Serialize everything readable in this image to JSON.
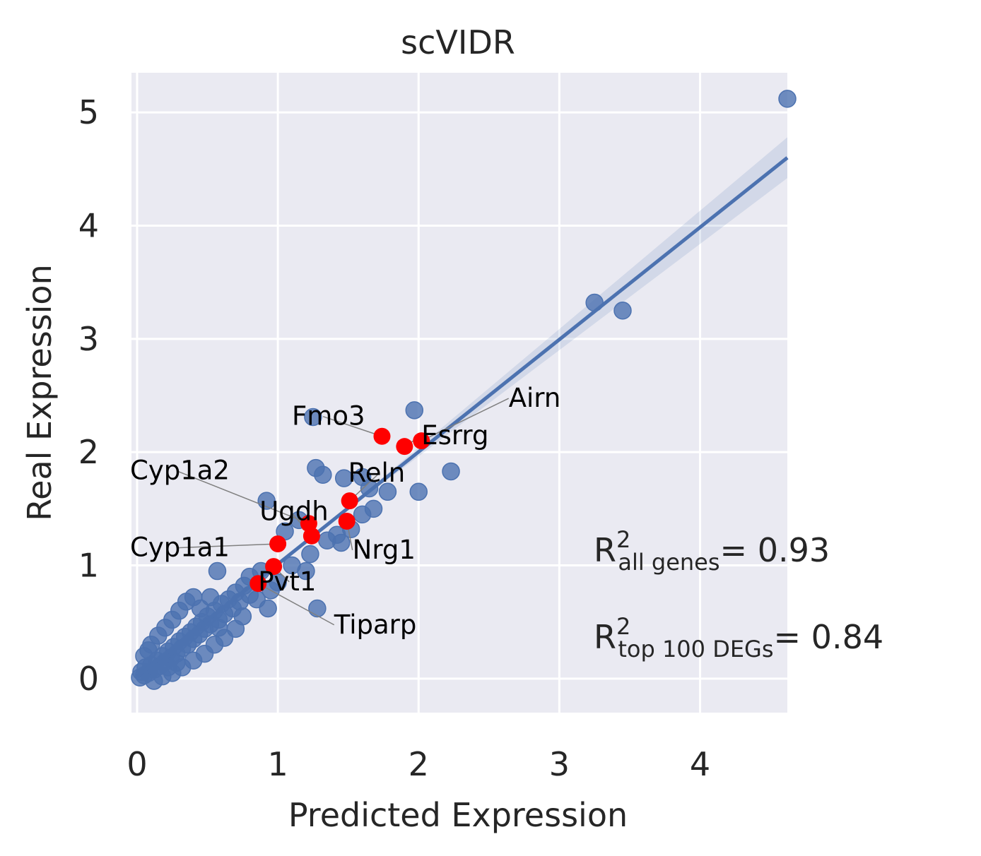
{
  "chart_data": {
    "type": "scatter",
    "title": "scVIDR",
    "xlabel": "Predicted Expression",
    "ylabel": "Real Expression",
    "xlim": [
      -0.04,
      4.62
    ],
    "ylim": [
      -0.3,
      5.35
    ],
    "xticks": [
      "0",
      "1",
      "2",
      "3",
      "4"
    ],
    "yticks": [
      "0",
      "1",
      "2",
      "3",
      "4",
      "5"
    ],
    "grid": true,
    "regression_line": {
      "x": [
        0.0,
        4.62
      ],
      "y": [
        0.02,
        4.6
      ]
    },
    "series": [
      {
        "name": "",
        "color": "#4c72b0",
        "points": [
          [
            0.02,
            0.01
          ],
          [
            0.03,
            0.06
          ],
          [
            0.05,
            0.03
          ],
          [
            0.06,
            0.1
          ],
          [
            0.08,
            0.05
          ],
          [
            0.1,
            0.12
          ],
          [
            0.12,
            0.08
          ],
          [
            0.14,
            0.16
          ],
          [
            0.16,
            0.11
          ],
          [
            0.18,
            0.2
          ],
          [
            0.2,
            0.15
          ],
          [
            0.22,
            0.24
          ],
          [
            0.24,
            0.18
          ],
          [
            0.26,
            0.28
          ],
          [
            0.28,
            0.22
          ],
          [
            0.3,
            0.33
          ],
          [
            0.32,
            0.27
          ],
          [
            0.34,
            0.37
          ],
          [
            0.36,
            0.3
          ],
          [
            0.38,
            0.41
          ],
          [
            0.4,
            0.35
          ],
          [
            0.42,
            0.46
          ],
          [
            0.44,
            0.39
          ],
          [
            0.46,
            0.5
          ],
          [
            0.48,
            0.44
          ],
          [
            0.5,
            0.55
          ],
          [
            0.52,
            0.48
          ],
          [
            0.55,
            0.6
          ],
          [
            0.58,
            0.52
          ],
          [
            0.6,
            0.66
          ],
          [
            0.62,
            0.57
          ],
          [
            0.65,
            0.7
          ],
          [
            0.68,
            0.62
          ],
          [
            0.7,
            0.76
          ],
          [
            0.73,
            0.68
          ],
          [
            0.76,
            0.82
          ],
          [
            0.8,
            0.74
          ],
          [
            0.1,
            0.3
          ],
          [
            0.15,
            0.38
          ],
          [
            0.2,
            0.45
          ],
          [
            0.25,
            0.52
          ],
          [
            0.3,
            0.6
          ],
          [
            0.35,
            0.68
          ],
          [
            0.4,
            0.72
          ],
          [
            0.12,
            -0.02
          ],
          [
            0.18,
            0.02
          ],
          [
            0.25,
            0.05
          ],
          [
            0.32,
            0.1
          ],
          [
            0.4,
            0.16
          ],
          [
            0.48,
            0.22
          ],
          [
            0.55,
            0.3
          ],
          [
            0.62,
            0.36
          ],
          [
            0.7,
            0.44
          ],
          [
            0.05,
            0.2
          ],
          [
            0.08,
            0.25
          ],
          [
            0.22,
            0.1
          ],
          [
            0.28,
            0.14
          ],
          [
            0.45,
            0.62
          ],
          [
            0.52,
            0.72
          ],
          [
            0.58,
            0.45
          ],
          [
            0.75,
            0.55
          ],
          [
            0.8,
            0.9
          ],
          [
            0.85,
            0.7
          ],
          [
            0.88,
            0.95
          ],
          [
            0.95,
            0.78
          ],
          [
            0.57,
            0.95
          ],
          [
            1.0,
            0.85
          ],
          [
            1.1,
            1.0
          ],
          [
            1.2,
            0.95
          ],
          [
            1.23,
            1.1
          ],
          [
            1.28,
            0.62
          ],
          [
            0.93,
            0.62
          ],
          [
            0.92,
            1.57
          ],
          [
            1.27,
            1.86
          ],
          [
            1.32,
            1.8
          ],
          [
            1.47,
            1.77
          ],
          [
            1.6,
            1.78
          ],
          [
            1.65,
            1.68
          ],
          [
            1.78,
            1.65
          ],
          [
            2.0,
            1.65
          ],
          [
            2.23,
            1.83
          ],
          [
            1.97,
            2.37
          ],
          [
            1.25,
            2.31
          ],
          [
            1.42,
            1.27
          ],
          [
            1.52,
            1.32
          ],
          [
            1.6,
            1.45
          ],
          [
            1.68,
            1.5
          ],
          [
            1.35,
            1.22
          ],
          [
            1.45,
            1.2
          ],
          [
            1.15,
            1.4
          ],
          [
            1.05,
            1.3
          ],
          [
            3.25,
            3.32
          ],
          [
            3.45,
            3.25
          ],
          [
            4.62,
            5.12
          ]
        ]
      },
      {
        "name": "",
        "color": "#ff0000",
        "points": [
          [
            1.74,
            2.14
          ],
          [
            1.9,
            2.05
          ],
          [
            2.02,
            2.1
          ],
          [
            1.51,
            1.57
          ],
          [
            1.49,
            1.39
          ],
          [
            1.22,
            1.37
          ],
          [
            1.24,
            1.26
          ],
          [
            1.0,
            1.19
          ],
          [
            0.97,
            0.99
          ],
          [
            0.86,
            0.84
          ]
        ]
      }
    ],
    "annotations": [
      {
        "text": "Airn",
        "x": 2.64,
        "y": 2.4,
        "target": [
          2.02,
          2.1
        ]
      },
      {
        "text": "Fmo3",
        "x": 1.1,
        "y": 2.24,
        "target": [
          1.74,
          2.14
        ]
      },
      {
        "text": "Esrrg",
        "x": 2.02,
        "y": 2.07,
        "target": [
          1.9,
          2.05
        ]
      },
      {
        "text": "Reln",
        "x": 1.5,
        "y": 1.74,
        "target": [
          1.51,
          1.57
        ]
      },
      {
        "text": "Cyp1a2",
        "x": -0.05,
        "y": 1.76,
        "target": [
          1.22,
          1.37
        ]
      },
      {
        "text": "Ugdh",
        "x": 0.87,
        "y": 1.4,
        "target": [
          1.24,
          1.26
        ]
      },
      {
        "text": "Nrg1",
        "x": 1.53,
        "y": 1.06,
        "target": [
          1.49,
          1.39
        ]
      },
      {
        "text": "Cyp1a1",
        "x": -0.05,
        "y": 1.08,
        "target": [
          1.0,
          1.19
        ]
      },
      {
        "text": "Pvt1",
        "x": 0.86,
        "y": 0.78,
        "target": [
          0.97,
          0.99
        ]
      },
      {
        "text": "Tiparp",
        "x": 1.4,
        "y": 0.4,
        "target": [
          0.86,
          0.84
        ]
      }
    ],
    "r2_text": [
      {
        "base": "R",
        "sup": "2",
        "sub": "all genes",
        "value": "= 0.93"
      },
      {
        "base": "R",
        "sup": "2",
        "sub": "top 100 DEGs",
        "value": "= 0.84"
      }
    ]
  }
}
